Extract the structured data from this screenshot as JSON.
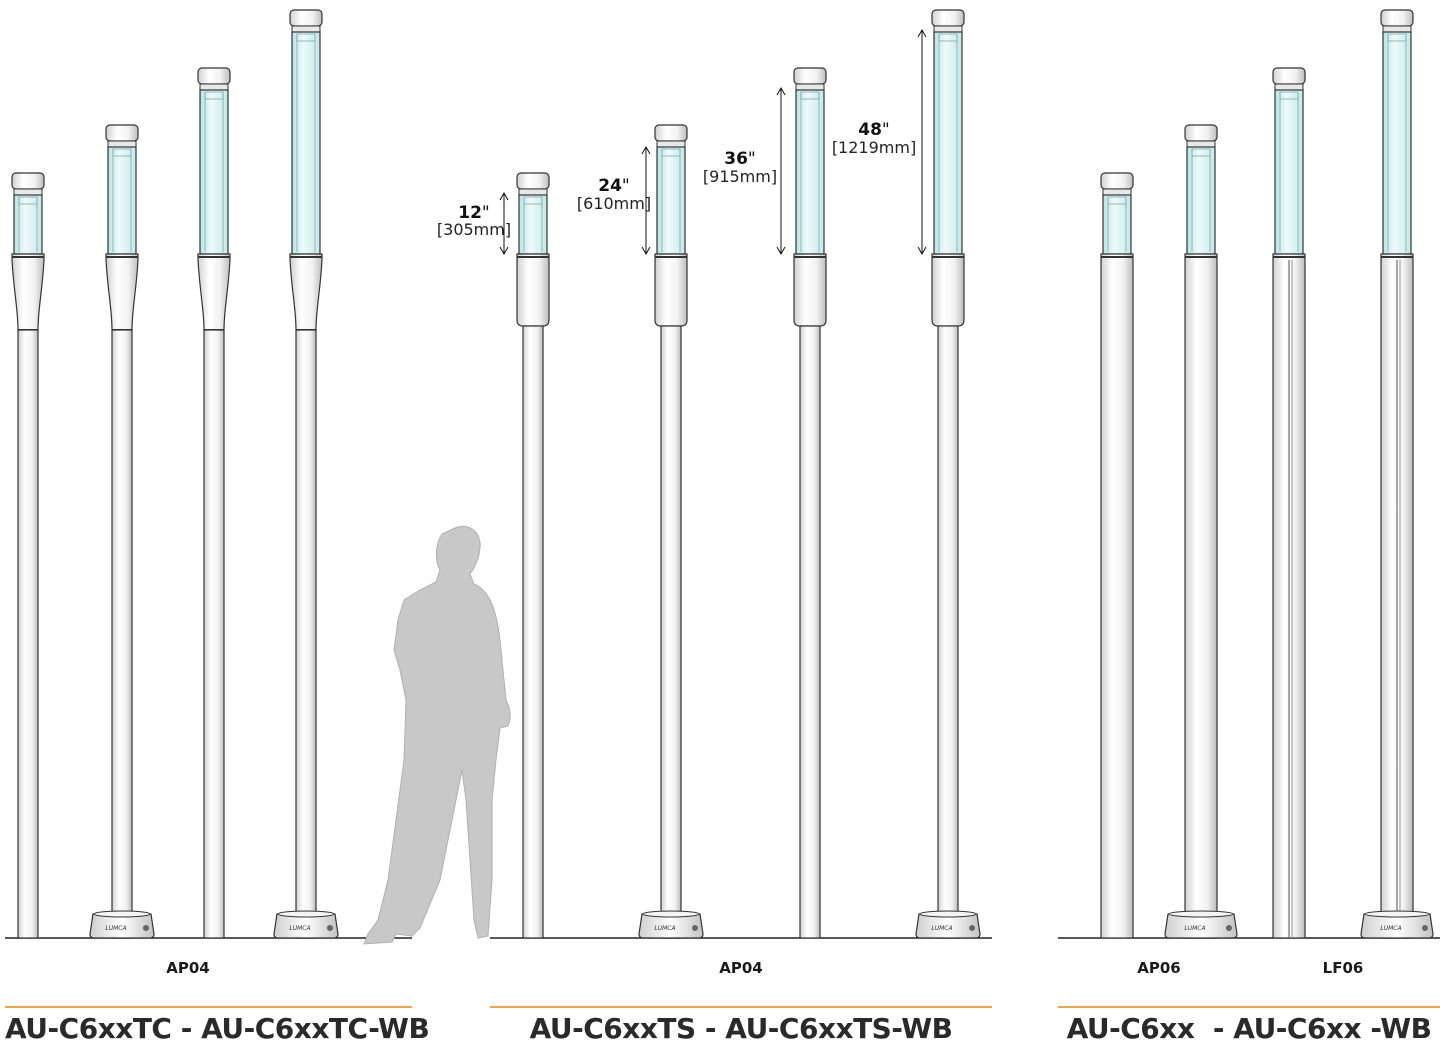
{
  "groups": [
    {
      "model": "AU-C6xxTC - AU-C6xxTC-WB",
      "base_labels": [
        "AP04"
      ]
    },
    {
      "model": "AU-C6xxTS - AU-C6xxTS-WB",
      "base_labels": [
        "AP04"
      ]
    },
    {
      "model": "AU-C6xx  - AU-C6xx -WB",
      "base_labels": [
        "AP06",
        "LF06"
      ]
    }
  ],
  "dimensions": [
    {
      "inches": "12",
      "mm": "[305mm]"
    },
    {
      "inches": "24",
      "mm": "[610mm]"
    },
    {
      "inches": "36",
      "mm": "[915mm]"
    },
    {
      "inches": "48",
      "mm": "[1219mm]"
    }
  ],
  "brand": "LUMCA",
  "colors": {
    "accent_line": "#f0a640",
    "glass": "#d6f0f0",
    "outline": "#333333",
    "silhouette": "#c8c8c8"
  }
}
